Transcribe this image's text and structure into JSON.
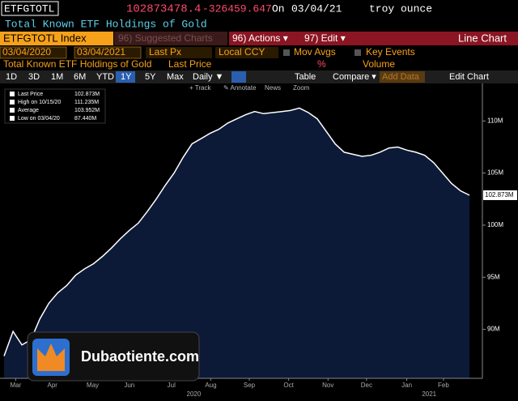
{
  "header": {
    "ticker": "ETFGTOTL",
    "price": "102873478.4",
    "change": "-326459.647",
    "on": "On",
    "date": "03/04/21",
    "unit": "troy ounce",
    "description": "Total Known ETF Holdings of Gold",
    "security": "ETFGTOTL Index",
    "suggested": "96) Suggested Charts",
    "actions": "96) Actions ▾",
    "edit": "97) Edit ▾",
    "chart_kind": "Line Chart",
    "start_date": "03/04/2020",
    "end_date": "03/04/2021",
    "field": "Last Px",
    "currency": "Local CCY",
    "mov_avgs": "Mov Avgs",
    "key_events": "Key Events",
    "series_title": "Total Known ETF Holdings of Gold",
    "last_price": "Last Price",
    "pct": "%",
    "volume": "Volume",
    "periods": [
      "1D",
      "3D",
      "1M",
      "6M",
      "YTD",
      "1Y",
      "5Y",
      "Max"
    ],
    "frequency": "Daily ▼",
    "table": "Table",
    "compare": "Compare ▾",
    "add_data": "Add Data",
    "edit_chart": "Edit Chart",
    "tools": [
      "+ Track",
      "✎ Annotate",
      "News",
      "Zoom"
    ]
  },
  "chart_data": {
    "type": "area",
    "color": "#0c1a38",
    "line_color": "#ffffff",
    "values": [
      87.44,
      89.8,
      88.5,
      89.0,
      91.0,
      92.5,
      93.5,
      94.2,
      95.2,
      95.8,
      96.3,
      97.0,
      97.8,
      98.7,
      99.5,
      100.2,
      101.3,
      102.5,
      103.8,
      105.0,
      106.5,
      107.8,
      108.3,
      108.8,
      109.2,
      109.8,
      110.2,
      110.6,
      110.9,
      110.7,
      110.8,
      110.9,
      111.0,
      111.235,
      110.8,
      110.2,
      109.0,
      107.8,
      107.0,
      106.8,
      106.6,
      106.7,
      107.0,
      107.4,
      107.5,
      107.2,
      107.0,
      106.7,
      106.0,
      105.0,
      104.0,
      103.3,
      102.873
    ],
    "last_label": "102.873M",
    "xlim": [
      0,
      52
    ],
    "xticks": [
      {
        "value": 1.3,
        "label": "Mar"
      },
      {
        "value": 5.4,
        "label": "Apr"
      },
      {
        "value": 9.9,
        "label": "May"
      },
      {
        "value": 14.0,
        "label": "Jun"
      },
      {
        "value": 18.7,
        "label": "Jul"
      },
      {
        "value": 23.1,
        "label": "Aug"
      },
      {
        "value": 27.4,
        "label": "Sep"
      },
      {
        "value": 31.8,
        "label": "Oct"
      },
      {
        "value": 36.2,
        "label": "Nov"
      },
      {
        "value": 40.5,
        "label": "Dec"
      },
      {
        "value": 45.0,
        "label": "Jan"
      },
      {
        "value": 49.1,
        "label": "Feb"
      }
    ],
    "years": [
      {
        "value": 21.2,
        "label": "2020"
      },
      {
        "value": 47.5,
        "label": "2021"
      }
    ],
    "ylim": [
      85.3,
      113.6
    ],
    "yticks": [
      {
        "value": 90,
        "label": "90M"
      },
      {
        "value": 95,
        "label": "95M"
      },
      {
        "value": 100,
        "label": "100M"
      },
      {
        "value": 105,
        "label": "105M"
      },
      {
        "value": 110,
        "label": "110M"
      }
    ],
    "legend": [
      {
        "label": "Last Price",
        "value": "102.873M"
      },
      {
        "label": "High on 10/15/20",
        "value": "111.235M"
      },
      {
        "label": "Average",
        "value": "103.952M"
      },
      {
        "label": "Low on 03/04/20",
        "value": "87.440M"
      }
    ],
    "watermark": "Dubaotiente.com"
  }
}
